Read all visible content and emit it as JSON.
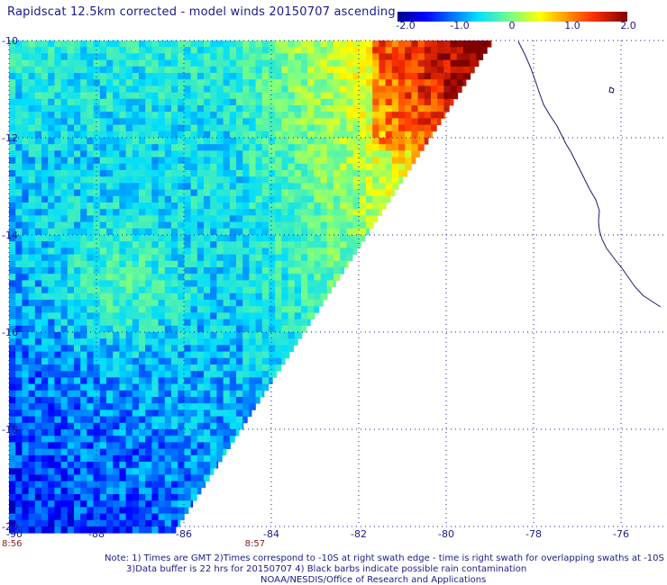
{
  "title": "Rapidscat 12.5km corrected - model winds 20150707 ascending",
  "colorbar": {
    "labels": [
      "-2.0",
      "-1.0",
      "0",
      "1.0",
      "2.0"
    ],
    "values": [
      -2.0,
      -1.0,
      0,
      1.0,
      2.0
    ]
  },
  "map": {
    "lon_range": [
      -90,
      -75
    ],
    "lat_range": [
      -20,
      -10
    ],
    "lon_ticks": [
      "-90",
      "-88",
      "-86",
      "-84",
      "-82",
      "-80",
      "-78",
      "-76"
    ],
    "lon_tick_values": [
      -90,
      -88,
      -86,
      -84,
      -82,
      -80,
      -78,
      -76
    ],
    "lat_ticks": [
      "-10",
      "-12",
      "-14",
      "-16",
      "-18",
      "-20"
    ],
    "lat_tick_values": [
      -10,
      -12,
      -14,
      -16,
      -18,
      -20
    ],
    "times": [
      {
        "label": "8:56",
        "lon": -90
      },
      {
        "label": "8:57",
        "lon": -84.4
      }
    ],
    "colors": {
      "grid": "#1a1a8c",
      "coast": "#1a1a6e",
      "time": "#8b1a1a"
    }
  },
  "notes": {
    "line1": "Note: 1) Times are GMT 2)Times correspond to -10S at right swath edge - time is right swath for overlapping swaths at -10S",
    "line2": "3)Data buffer is 22 hrs for 20150707 4) Black barbs indicate possible rain contamination",
    "line3": "NOAA/NESDIS/Office of Research and Applications"
  }
}
